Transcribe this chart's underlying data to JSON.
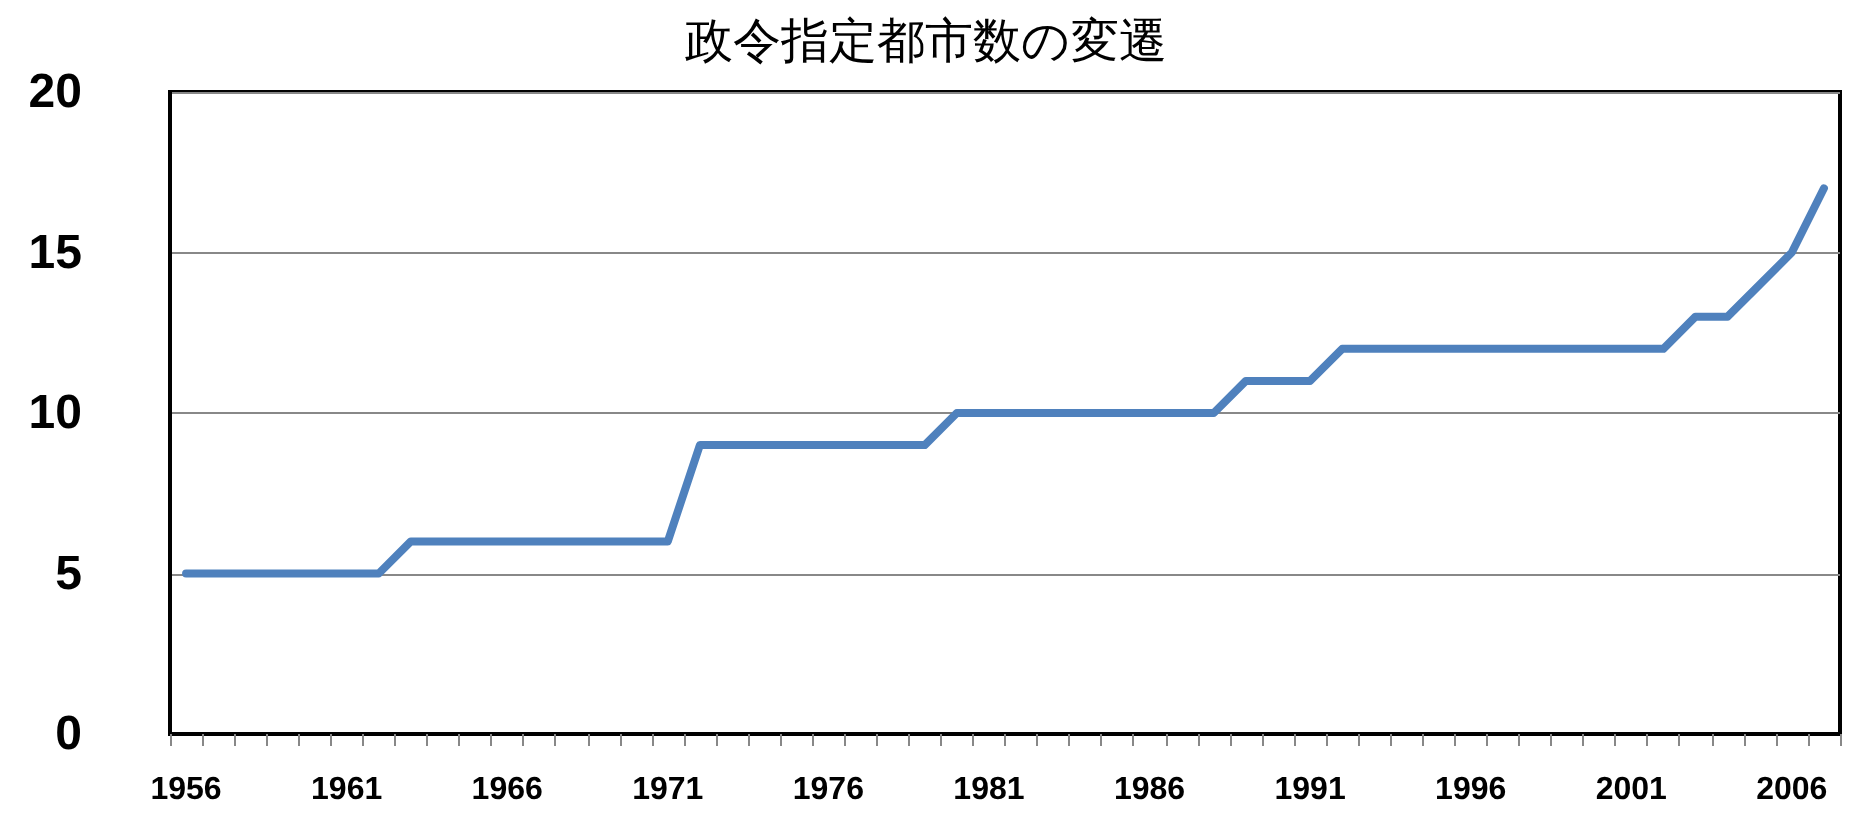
{
  "chart_data": {
    "type": "line",
    "title": "政令指定都市数の変遷",
    "categories": [
      "1956",
      null,
      null,
      null,
      null,
      "1961",
      null,
      null,
      null,
      null,
      "1966",
      null,
      null,
      null,
      null,
      "1971",
      null,
      null,
      null,
      null,
      "1976",
      null,
      null,
      null,
      null,
      "1981",
      null,
      null,
      null,
      null,
      "1986",
      null,
      null,
      null,
      null,
      "1991",
      null,
      null,
      null,
      null,
      "1996",
      null,
      null,
      null,
      null,
      "2001",
      null,
      null,
      null,
      null,
      "2006",
      null
    ],
    "series": [
      {
        "color": "#4f81bd",
        "values": [
          5,
          5,
          5,
          5,
          5,
          5,
          5,
          6,
          6,
          6,
          6,
          6,
          6,
          6,
          6,
          6,
          9,
          9,
          9,
          9,
          9,
          9,
          9,
          9,
          10,
          10,
          10,
          10,
          10,
          10,
          10,
          10,
          10,
          11,
          11,
          11,
          12,
          12,
          12,
          12,
          12,
          12,
          12,
          12,
          12,
          12,
          12,
          13,
          13,
          14,
          15,
          17
        ]
      }
    ],
    "ylim": [
      0,
      20
    ],
    "yticks": [
      0,
      5,
      10,
      15,
      20
    ],
    "grid": "y",
    "marker": "none",
    "line_style": "solid"
  }
}
